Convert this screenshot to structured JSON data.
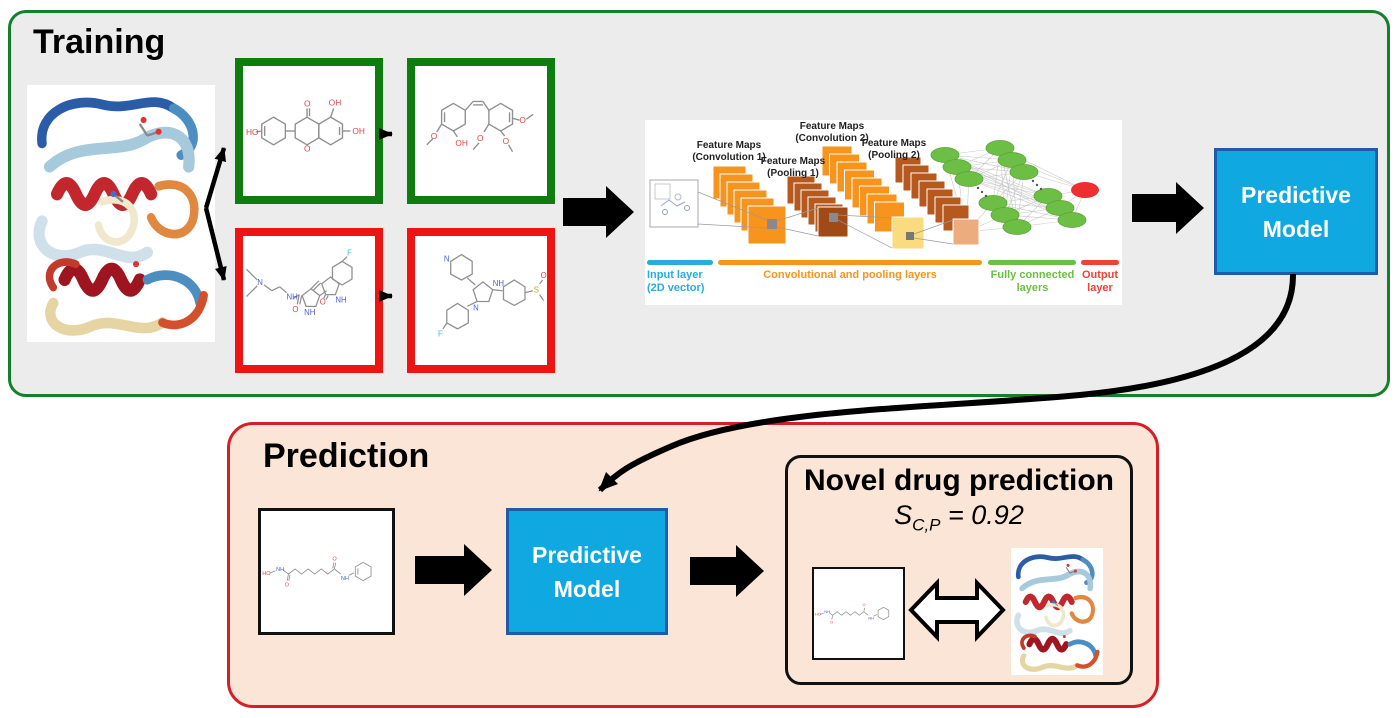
{
  "training": {
    "title": "Training",
    "predictive_model": {
      "line1": "Predictive",
      "line2": "Model"
    }
  },
  "cnn": {
    "feature_maps": [
      {
        "line1": "Feature Maps",
        "line2": "(Convolution 1)"
      },
      {
        "line1": "Feature Maps",
        "line2": "(Pooling 1)"
      },
      {
        "line1": "Feature Maps",
        "line2": "(Convolution 2)"
      },
      {
        "line1": "Feature Maps",
        "line2": "(Pooling 2)"
      }
    ],
    "legend": [
      {
        "line1": "Input layer",
        "line2": "(2D vector)",
        "color": "#29ABE2"
      },
      {
        "line1": "Convolutional and pooling layers",
        "line2": "",
        "color": "#F7941D"
      },
      {
        "line1": "Fully connected",
        "line2": "layers",
        "color": "#6CBE45"
      },
      {
        "line1": "Output",
        "line2": "layer",
        "color": "#EF4136"
      }
    ]
  },
  "prediction": {
    "title": "Prediction",
    "predictive_model": {
      "line1": "Predictive",
      "line2": "Model"
    },
    "novel": {
      "title": "Novel drug prediction",
      "score_symbol": "S",
      "score_subscript": "C,P",
      "score_rest": " = 0.92"
    }
  },
  "colors": {
    "training_bg": "#ECECEC",
    "training_border": "#14802C",
    "prediction_bg": "#FBE5D6",
    "prediction_border": "#D51F26",
    "positive_box_border": "#0E7C0E",
    "negative_box_border": "#EE1414",
    "model_box_fill": "#10A8E0",
    "model_box_border": "#1F5BA8",
    "arrow": "#000000",
    "cnn_conv": "#F7941D",
    "cnn_pool": "#B5591F",
    "cnn_fc_node": "#6CBE45",
    "cnn_output_node": "#EE2E31"
  }
}
